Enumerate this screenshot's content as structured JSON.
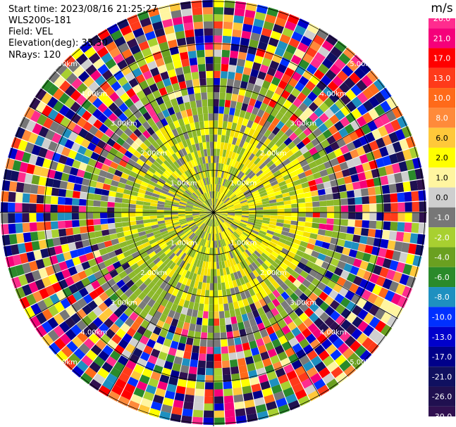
{
  "info": {
    "start_time": "Start time: 2023/08/16 21:25:27",
    "instrument": "WLS200s-181",
    "field": "Field: VEL",
    "elevation": "Elevation(deg): 35.30",
    "nrays": "NRays: 120"
  },
  "chart_data": {
    "type": "heatmap",
    "subtype": "ppi-polar",
    "field": "VEL",
    "unit": "m/s",
    "n_rays": 120,
    "elevation_deg": 35.3,
    "range_rings_km": [
      1,
      2,
      3,
      4,
      5
    ],
    "ring_labels": [
      "1.00km",
      "2.00km",
      "3.00km",
      "4.00km",
      "5.00km"
    ],
    "colorbar": {
      "title": "m/s",
      "tick_labels": [
        "26.0",
        "21.0",
        "17.0",
        "13.0",
        "10.0",
        "8.0",
        "6.0",
        "2.0",
        "1.0",
        "0.0",
        "-1.0",
        "-2.0",
        "-4.0",
        "-6.0",
        "-8.0",
        "-10.0",
        "-13.0",
        "-17.0",
        "-21.0",
        "-26.0",
        "-30.0"
      ],
      "colors": [
        "#ff2c8e",
        "#f5007a",
        "#ff0000",
        "#ff3a1a",
        "#ff6a1a",
        "#ff8a3a",
        "#ffc83a",
        "#ffff00",
        "#fff5a0",
        "#cfcfcf",
        "#777777",
        "#a8d030",
        "#6aa020",
        "#2a8a2a",
        "#1e90c0",
        "#0030ff",
        "#0000cc",
        "#00008a",
        "#101060",
        "#201050",
        "#301050"
      ]
    }
  }
}
